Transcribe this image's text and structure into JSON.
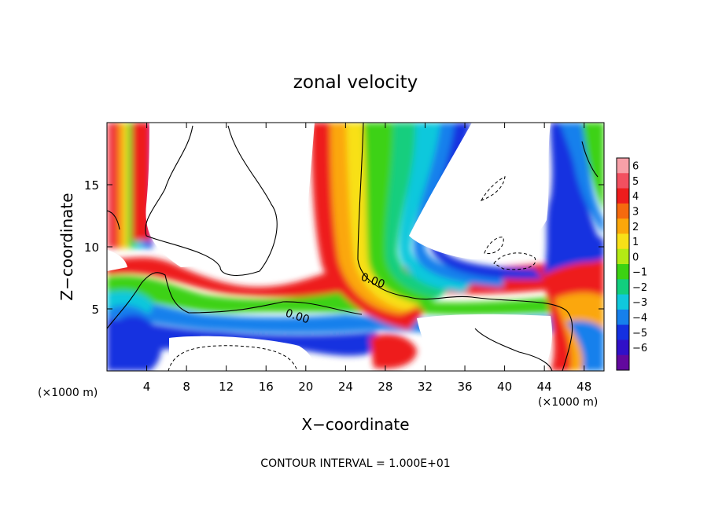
{
  "chart_data": {
    "type": "heatmap",
    "title": "zonal velocity",
    "xlabel": "X−coordinate",
    "ylabel": "Z−coordinate",
    "x_unit": "(×1000 m)",
    "footer": "CONTOUR INTERVAL = 1.000E+01",
    "xlim": [
      0,
      50
    ],
    "ylim": [
      0,
      20
    ],
    "xticks": [
      4,
      8,
      12,
      16,
      20,
      24,
      28,
      32,
      36,
      40,
      44,
      48
    ],
    "yticks": [
      5,
      10,
      15
    ],
    "contour_label": "0.00",
    "colorbar": {
      "ticks": [
        "6",
        "5",
        "4",
        "3",
        "2",
        "1",
        "0",
        "−1",
        "−2",
        "−3",
        "−4",
        "−5",
        "−6"
      ],
      "min": -6,
      "max": 6,
      "colors": [
        "#f7a0a8",
        "#f25060",
        "#ee1c1c",
        "#f56a0e",
        "#fba70a",
        "#f8e018",
        "#b4ea14",
        "#3cd212",
        "#12ce7e",
        "#10c8dc",
        "#1680ec",
        "#1430e0",
        "#3010c8",
        "#62089e"
      ]
    }
  }
}
